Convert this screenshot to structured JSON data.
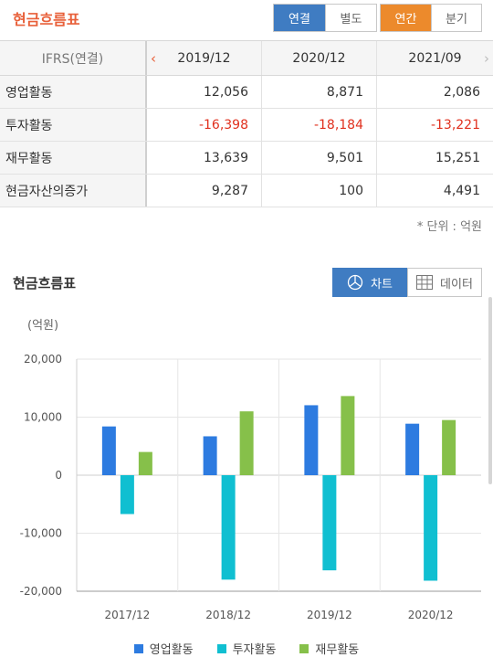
{
  "header": {
    "title": "현금흐름표",
    "seg_consolidation": [
      "연결",
      "별도"
    ],
    "seg_period": [
      "연간",
      "분기"
    ]
  },
  "table": {
    "corner": "IFRS(연결)",
    "columns": [
      "2019/12",
      "2020/12",
      "2021/09"
    ],
    "rows": [
      {
        "label": "영업활동",
        "values": [
          "12,056",
          "8,871",
          "2,086"
        ]
      },
      {
        "label": "투자활동",
        "values": [
          "-16,398",
          "-18,184",
          "-13,221"
        ]
      },
      {
        "label": "재무활동",
        "values": [
          "13,639",
          "9,501",
          "15,251"
        ]
      },
      {
        "label": "현금자산의증가",
        "values": [
          "9,287",
          "100",
          "4,491"
        ]
      }
    ],
    "unit_note": "* 단위 : 억원"
  },
  "chart_section": {
    "title": "현금흐름표",
    "chart_button": "차트",
    "data_button": "데이터",
    "unit_label": "(억원)"
  },
  "colors": {
    "primary": "#3f7cc2",
    "accent_orange": "#ec8a2c",
    "title_orange": "#e8603a",
    "negative": "#e0301e"
  },
  "chart_data": {
    "type": "bar",
    "categories": [
      "2017/12",
      "2018/12",
      "2019/12",
      "2020/12"
    ],
    "series": [
      {
        "name": "영업활동",
        "color": "#2d7be0",
        "values": [
          8400,
          6700,
          12056,
          8871
        ]
      },
      {
        "name": "투자활동",
        "color": "#10bfd1",
        "values": [
          -6700,
          -18000,
          -16398,
          -18184
        ]
      },
      {
        "name": "재무활동",
        "color": "#86c04a",
        "values": [
          4000,
          11000,
          13639,
          9501
        ]
      }
    ],
    "ylabel": "(억원)",
    "ylim": [
      -20000,
      20000
    ],
    "yticks": [
      20000,
      10000,
      0,
      -10000,
      -20000
    ],
    "ytick_labels": [
      "20,000",
      "10,000",
      "0",
      "-10,000",
      "-20,000"
    ],
    "grid": true,
    "legend": "bottom-center"
  }
}
